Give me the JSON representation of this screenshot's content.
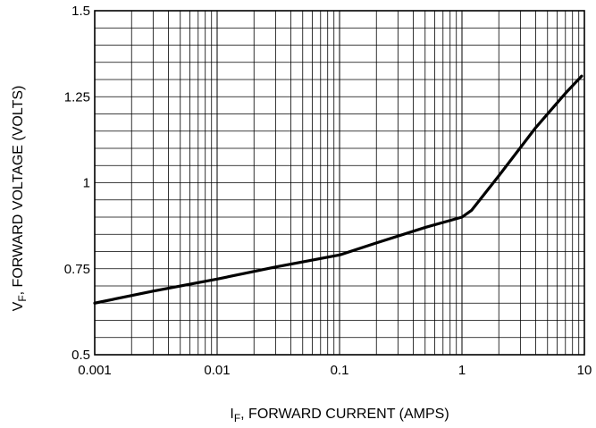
{
  "chart_data": {
    "type": "line",
    "x_scale": "log",
    "xlim": [
      0.001,
      10
    ],
    "ylim": [
      0.5,
      1.5
    ],
    "grid": true,
    "x_ticks": [
      "0.001",
      "0.01",
      "0.1",
      "1",
      "10"
    ],
    "y_ticks": [
      "0.5",
      "0.75",
      "1",
      "1.25",
      "1.5"
    ],
    "xlabel": {
      "main": "I",
      "sub": "F",
      "rest": ", FORWARD CURRENT (AMPS)"
    },
    "ylabel": {
      "main": "V",
      "sub": "F",
      "rest": ", FORWARD VOLTAGE (VOLTS)"
    },
    "series": [
      {
        "x": [
          0.001,
          0.003,
          0.01,
          0.03,
          0.1,
          0.2,
          0.5,
          1.0,
          1.2,
          2,
          4,
          7,
          9.5
        ],
        "y": [
          0.65,
          0.685,
          0.72,
          0.755,
          0.79,
          0.825,
          0.87,
          0.9,
          0.92,
          1.02,
          1.16,
          1.26,
          1.31
        ]
      }
    ]
  }
}
